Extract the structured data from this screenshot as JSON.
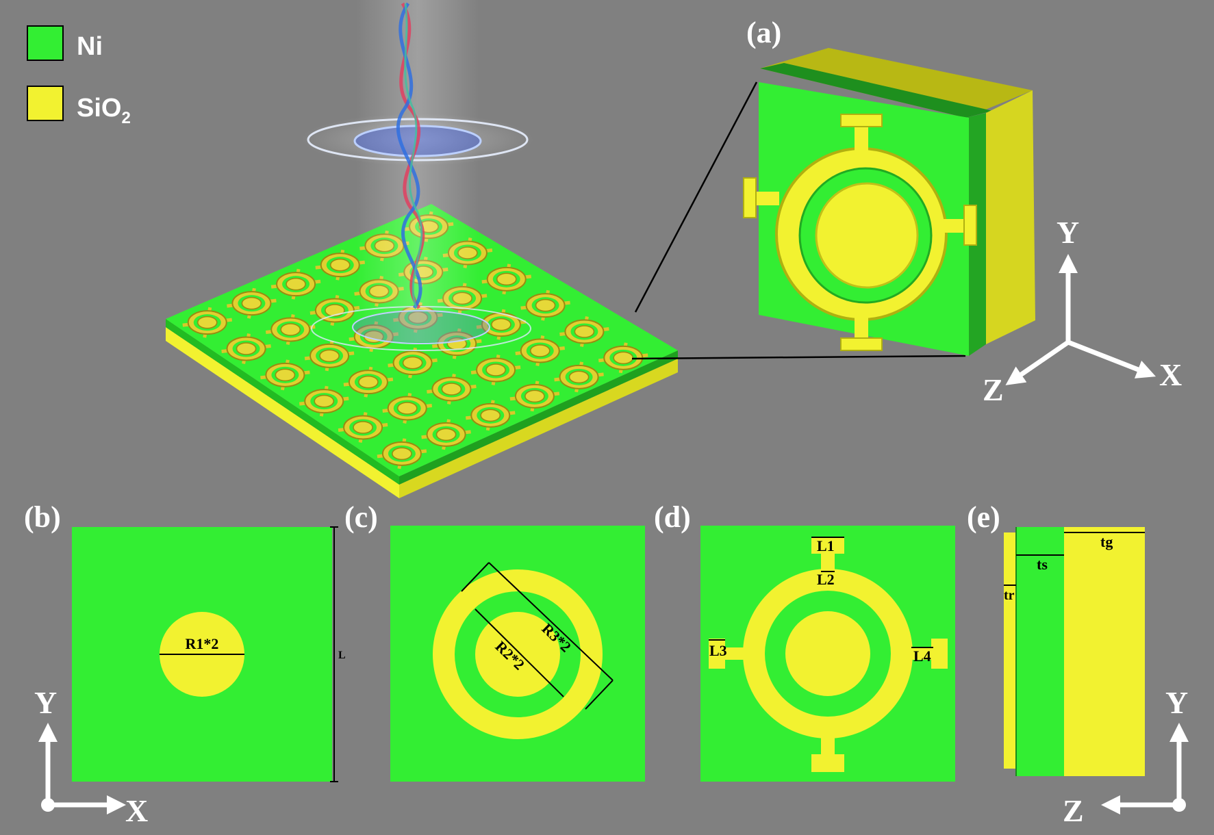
{
  "colors": {
    "background": "#808080",
    "ni": "#33ee33",
    "sio2": "#f2f230",
    "ni_dark": "#1c9a1c",
    "sio2_dark": "#c8c81e",
    "axis": "#ffffff"
  },
  "legend": {
    "items": [
      {
        "label": "Ni",
        "color": "#33ee33"
      },
      {
        "label": "SiO",
        "sub": "2",
        "color": "#f2f230"
      }
    ]
  },
  "panels": {
    "a": "(a)",
    "b": "(b)",
    "c": "(c)",
    "d": "(d)",
    "e": "(e)"
  },
  "dimensions": {
    "b": {
      "r1": "R1*2",
      "l": "L"
    },
    "c": {
      "r3": "R3*2",
      "r2": "R2*2"
    },
    "d": {
      "l1": "L1",
      "l2": "L2",
      "l3": "L3",
      "l4": "L4"
    },
    "e": {
      "ts": "ts",
      "tg": "tg",
      "tr": "tr"
    }
  },
  "axes": {
    "a": {
      "y": "Y",
      "x": "X",
      "z": "Z"
    },
    "b": {
      "y": "Y",
      "x": "X"
    },
    "e": {
      "y": "Y",
      "z": "Z"
    }
  }
}
